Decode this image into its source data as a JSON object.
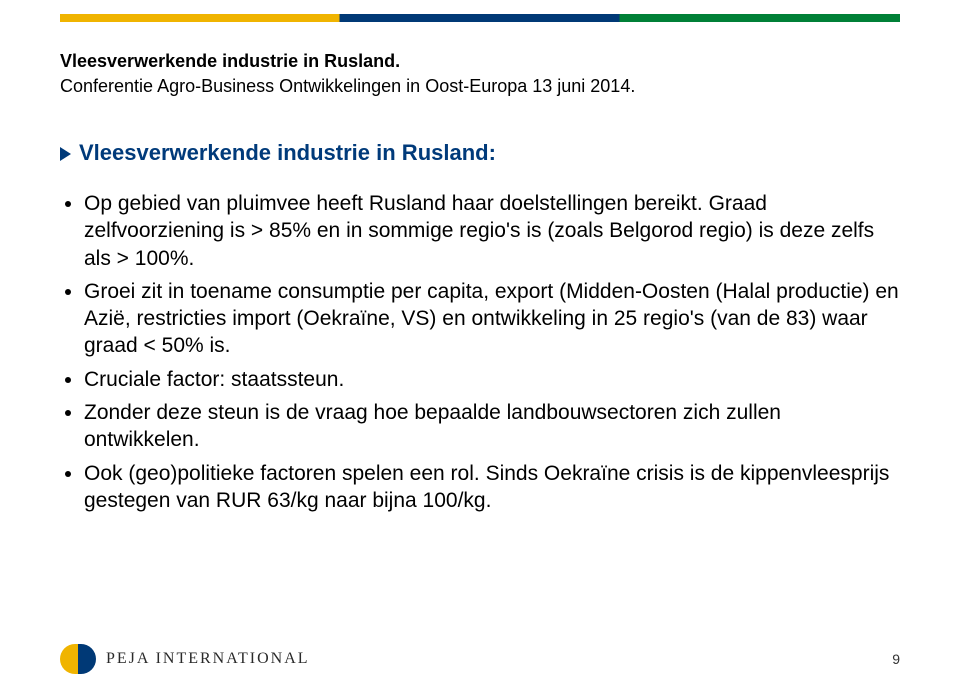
{
  "colors": {
    "brand_blue": "#003a7a",
    "stripe_yellow": "#f0b400",
    "stripe_blue": "#003976",
    "stripe_green": "#008037",
    "text": "#000000",
    "footer_text": "#2a2a2a",
    "logo_left": "#f0b400",
    "logo_right": "#003976"
  },
  "header": {
    "title": "Vleesverwerkende industrie in Rusland.",
    "subtitle": "Conferentie Agro-Business Ontwikkelingen in Oost-Europa 13 juni 2014."
  },
  "section_heading": "Vleesverwerkende industrie in Rusland:",
  "bullets": [
    "Op gebied van pluimvee heeft Rusland haar doelstellingen bereikt. Graad zelfvoorziening is > 85% en in sommige regio's is (zoals Belgorod regio) is deze zelfs als > 100%.",
    "Groei zit in toename consumptie per capita, export (Midden-Oosten (Halal productie) en Azië, restricties import (Oekraïne, VS) en ontwikkeling in 25 regio's (van de 83) waar graad < 50% is.",
    "Cruciale factor: staatssteun.",
    "Zonder deze steun is de vraag hoe bepaalde landbouwsectoren zich zullen ontwikkelen.",
    "Ook (geo)politieke factoren spelen een rol. Sinds Oekraïne crisis is de kippenvleesprijs gestegen van RUR 63/kg naar bijna 100/kg."
  ],
  "footer": {
    "company": "PEJA INTERNATIONAL",
    "page_number": "9"
  },
  "typography": {
    "header_title_pt": 18,
    "header_sub_pt": 18,
    "section_heading_pt": 22,
    "body_pt": 21,
    "footer_company_pt": 16,
    "page_number_pt": 14
  }
}
